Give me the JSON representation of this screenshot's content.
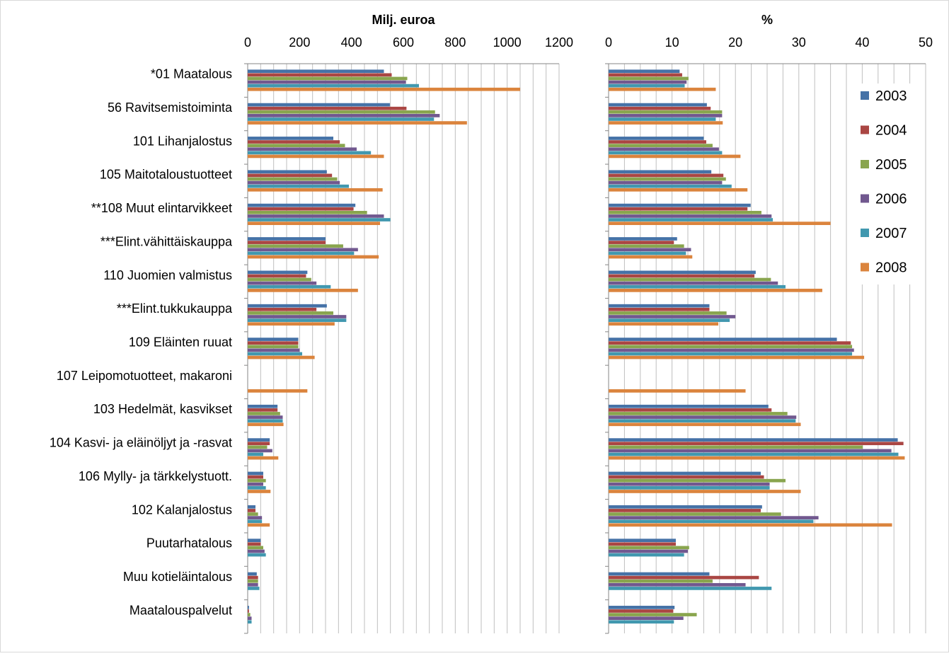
{
  "series_colors": [
    "#4572a7",
    "#aa4643",
    "#89a54e",
    "#71588f",
    "#4198af",
    "#db843d"
  ],
  "chart_data": [
    {
      "type": "bar",
      "orientation": "horizontal",
      "title": "Milj. euroa",
      "xlim": [
        0,
        1200
      ],
      "xticks": [
        0,
        200,
        400,
        600,
        800,
        1000,
        1200
      ],
      "grid": true,
      "categories": [
        "*01 Maatalous",
        "56 Ravitsemistoiminta",
        "101 Lihanjalostus",
        "105 Maitotaloustuotteet",
        "**108 Muut elintarvikkeet",
        "***Elint.vähittäiskauppa",
        "110 Juomien valmistus",
        "***Elint.tukkukauppa",
        "109 Eläinten ruuat",
        "107 Leipomotuotteet, makaroni",
        "103 Hedelmät, kasvikset",
        "104 Kasvi- ja eläinöljyt ja -rasvat",
        "106 Mylly- ja tärkkelystuott.",
        "102 Kalanjalostus",
        "Puutarhatalous",
        "Muu kotieläintalous",
        "Maatalouspalvelut"
      ],
      "series": [
        {
          "name": "2003",
          "values": [
            525,
            548,
            330,
            305,
            415,
            300,
            230,
            305,
            195,
            0,
            115,
            85,
            60,
            30,
            50,
            35,
            5
          ]
        },
        {
          "name": "2004",
          "values": [
            555,
            612,
            355,
            325,
            408,
            300,
            225,
            265,
            195,
            0,
            115,
            85,
            60,
            30,
            50,
            40,
            5
          ]
        },
        {
          "name": "2005",
          "values": [
            615,
            722,
            375,
            345,
            460,
            368,
            245,
            330,
            195,
            0,
            125,
            75,
            70,
            40,
            60,
            40,
            10
          ]
        },
        {
          "name": "2006",
          "values": [
            610,
            740,
            420,
            355,
            525,
            425,
            265,
            380,
            200,
            0,
            135,
            95,
            60,
            55,
            65,
            40,
            15
          ]
        },
        {
          "name": "2007",
          "values": [
            660,
            718,
            475,
            390,
            550,
            410,
            320,
            380,
            210,
            0,
            135,
            60,
            70,
            55,
            70,
            45,
            15
          ]
        },
        {
          "name": "2008",
          "values": [
            1050,
            845,
            525,
            520,
            510,
            505,
            425,
            335,
            258,
            230,
            138,
            118,
            88,
            85,
            0,
            0,
            0
          ]
        }
      ]
    },
    {
      "type": "bar",
      "orientation": "horizontal",
      "title": "%",
      "xlim": [
        0,
        50
      ],
      "xticks": [
        0,
        10,
        20,
        30,
        40,
        50
      ],
      "grid": true,
      "legend_position": "right",
      "categories": [
        "*01 Maatalous",
        "56 Ravitsemistoiminta",
        "101 Lihanjalostus",
        "105 Maitotaloustuotteet",
        "**108 Muut elintarvikkeet",
        "***Elint.vähittäiskauppa",
        "110 Juomien valmistus",
        "***Elint.tukkukauppa",
        "109 Eläinten ruuat",
        "107 Leipomotuotteet, makaroni",
        "103 Hedelmät, kasvikset",
        "104 Kasvi- ja eläinöljyt ja -rasvat",
        "106 Mylly- ja tärkkelystuott.",
        "102 Kalanjalostus",
        "Puutarhatalous",
        "Muu kotieläintalous",
        "Maatalouspalvelut"
      ],
      "series": [
        {
          "name": "2003",
          "values": [
            11.2,
            15.5,
            15.0,
            16.2,
            22.4,
            10.8,
            23.2,
            15.9,
            36.0,
            0,
            25.2,
            45.6,
            24.0,
            24.2,
            10.6,
            15.9,
            10.4
          ]
        },
        {
          "name": "2004",
          "values": [
            11.6,
            16.1,
            15.4,
            18.1,
            21.9,
            10.3,
            23.0,
            15.9,
            38.2,
            0,
            25.7,
            46.5,
            24.5,
            24.0,
            10.6,
            23.7,
            10.2
          ]
        },
        {
          "name": "2005",
          "values": [
            12.6,
            17.9,
            16.4,
            18.5,
            24.1,
            11.9,
            25.6,
            18.6,
            38.4,
            0,
            28.2,
            40.1,
            27.9,
            27.2,
            12.7,
            16.4,
            13.9
          ]
        },
        {
          "name": "2006",
          "values": [
            12.3,
            17.9,
            17.4,
            17.9,
            25.7,
            13.0,
            26.7,
            20.0,
            38.7,
            0,
            29.6,
            44.6,
            25.4,
            33.1,
            12.5,
            21.6,
            11.8
          ]
        },
        {
          "name": "2007",
          "values": [
            12.0,
            16.9,
            17.9,
            19.4,
            25.9,
            12.2,
            27.9,
            19.1,
            38.4,
            0,
            29.5,
            45.7,
            25.4,
            32.3,
            11.9,
            25.7,
            10.3
          ]
        },
        {
          "name": "2008",
          "values": [
            16.9,
            18.0,
            20.8,
            21.9,
            35.0,
            13.2,
            33.7,
            17.3,
            40.3,
            21.6,
            30.3,
            46.7,
            30.3,
            44.7,
            0,
            0,
            0
          ]
        }
      ]
    }
  ]
}
